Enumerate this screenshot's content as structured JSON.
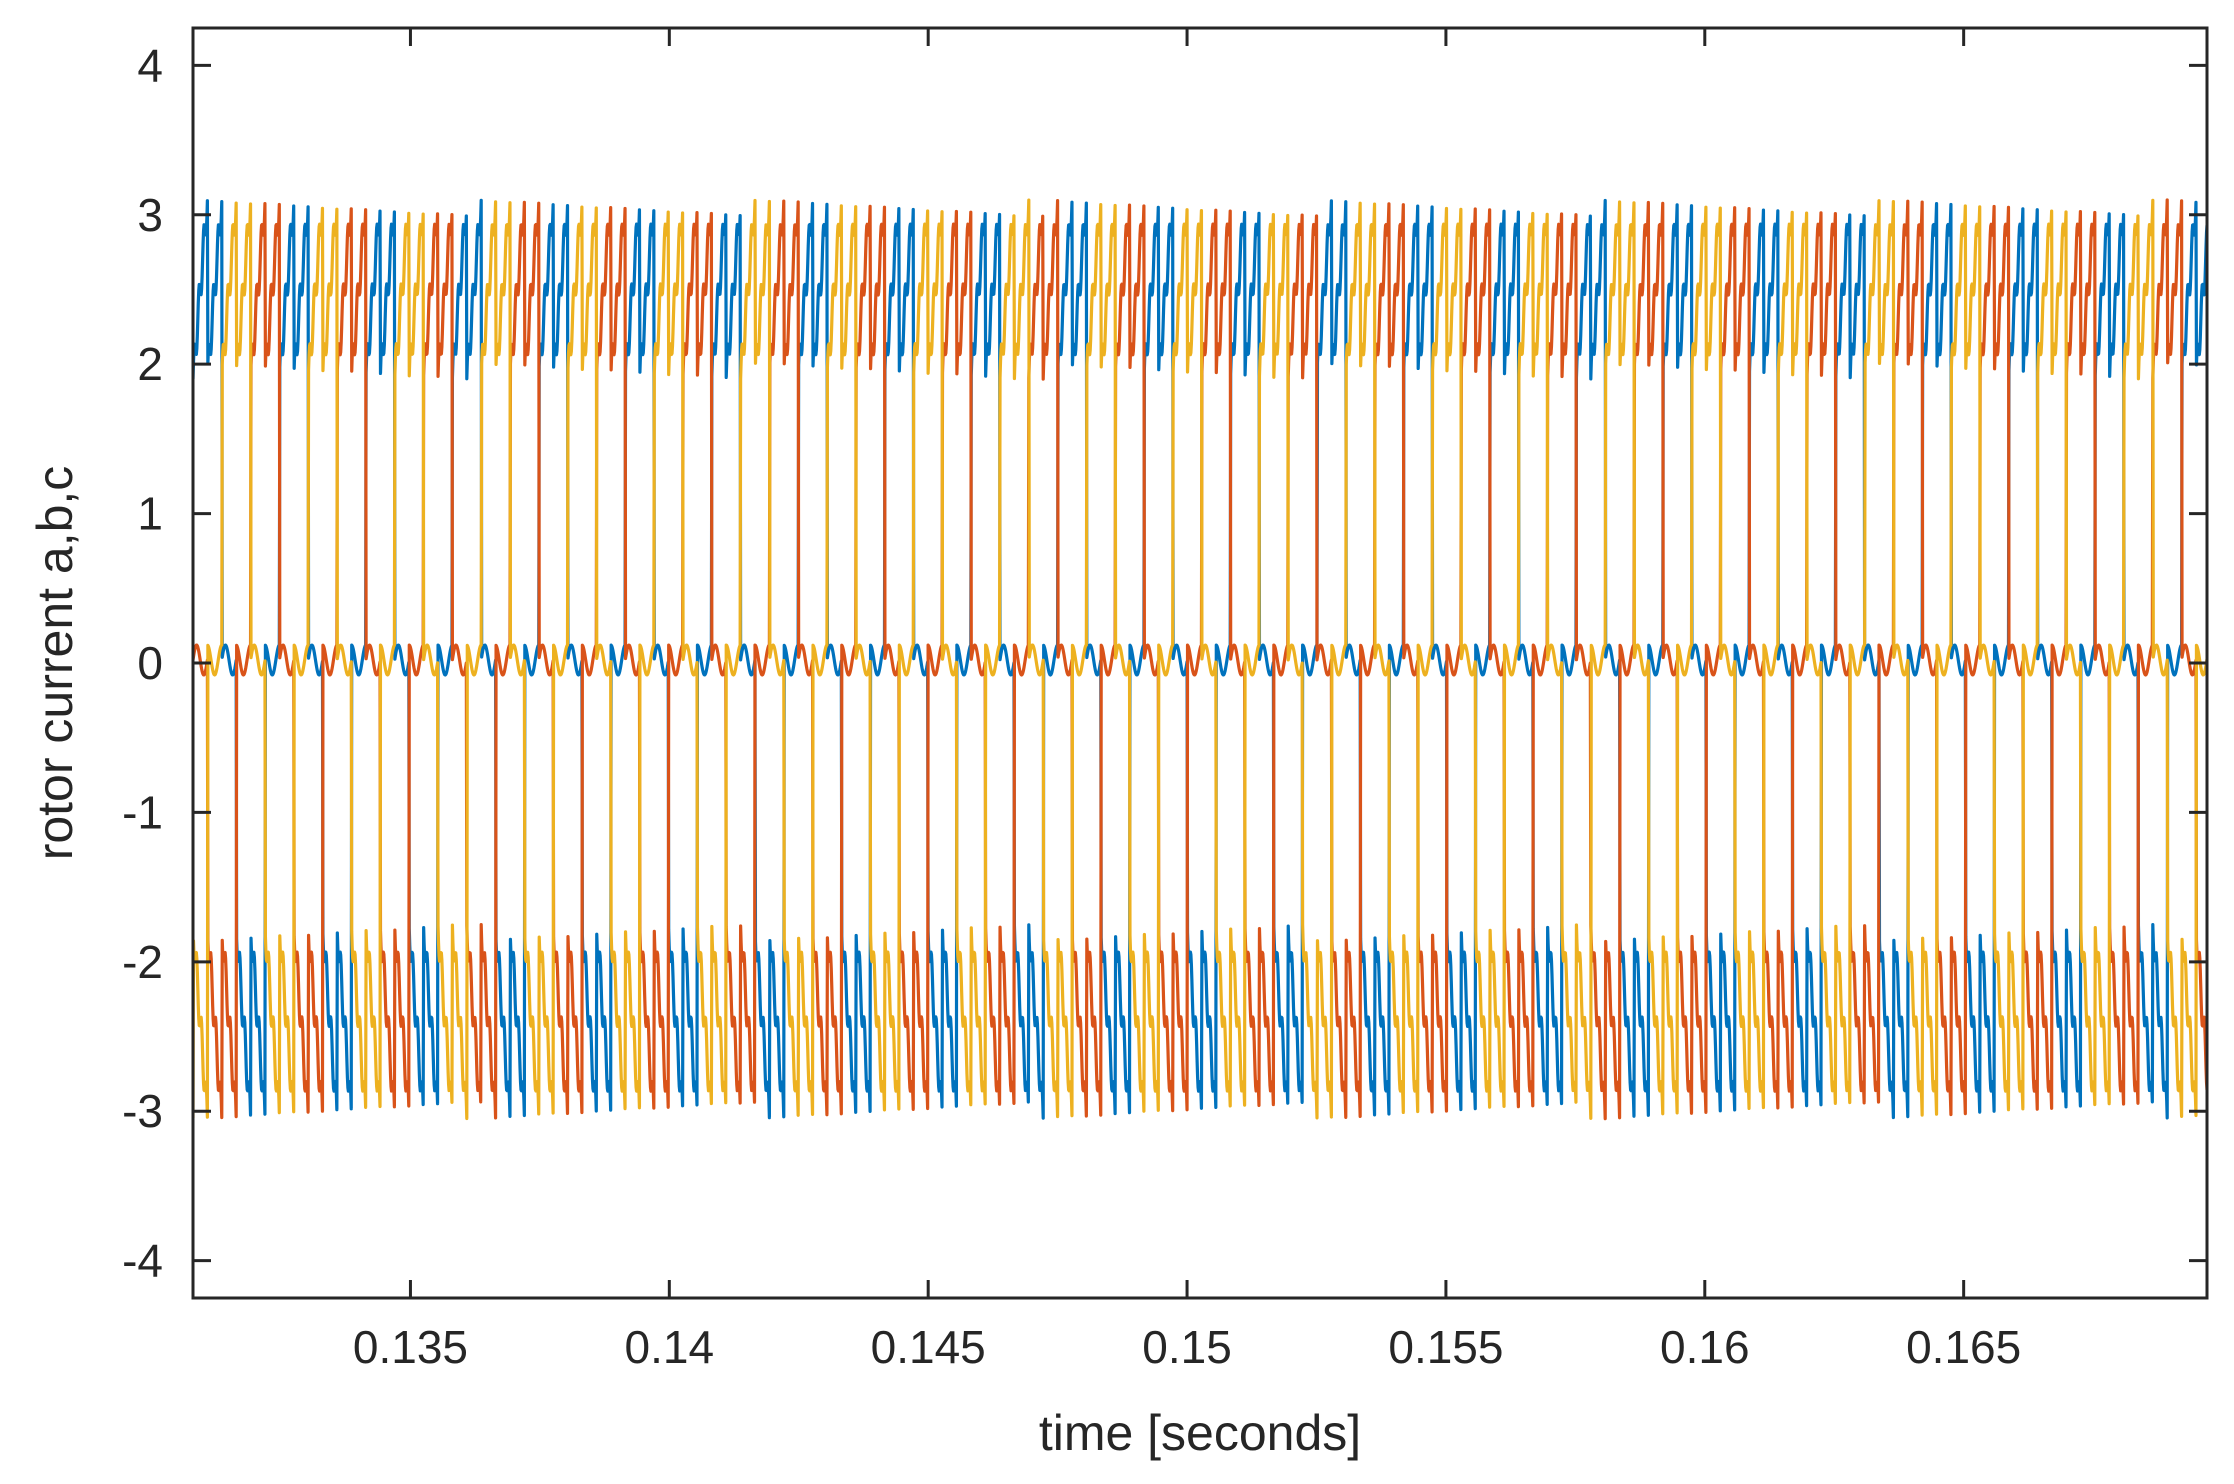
{
  "chart_data": {
    "type": "line",
    "title": "",
    "xlabel": "time [seconds]",
    "ylabel": "rotor current a,b,c",
    "xlim": [
      0.1308,
      0.1697
    ],
    "ylim": [
      -4.25,
      4.25
    ],
    "xticks": [
      0.135,
      0.14,
      0.145,
      0.15,
      0.155,
      0.16,
      0.165
    ],
    "xtick_labels": [
      "0.135",
      "0.14",
      "0.145",
      "0.15",
      "0.155",
      "0.16",
      "0.165"
    ],
    "yticks": [
      4,
      3,
      2,
      1,
      0,
      -1,
      -2,
      -3,
      -4
    ],
    "ytick_labels": [
      "4",
      "3",
      "2",
      "1",
      "0",
      "-1",
      "-2",
      "-3",
      "-4"
    ],
    "grid": false,
    "legend": "none",
    "waveform": {
      "description_of_shape": "six-pulse quasi-square rotor currents with sawtooth ripple",
      "commutation_period_s": 0.0005,
      "phase_period_s": 0.00167,
      "plateau_high": [
        1.9,
        3.1
      ],
      "plateau_low": [
        -1.75,
        -3.05
      ],
      "zero_band": [
        -0.08,
        0.12
      ]
    },
    "series": [
      {
        "key": "a",
        "color": "#0072BD",
        "phase_offset_s": 0.0
      },
      {
        "key": "b",
        "color": "#D95319",
        "phase_offset_s": 0.000557
      },
      {
        "key": "c",
        "color": "#EDB120",
        "phase_offset_s": 0.001113
      }
    ]
  }
}
